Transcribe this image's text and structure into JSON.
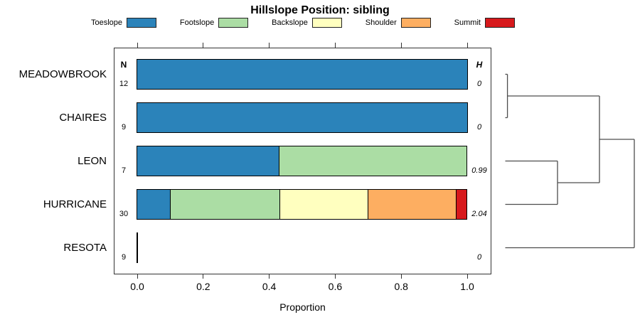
{
  "title": "Hillslope Position: sibling",
  "legend": {
    "items": [
      {
        "label": "Toeslope",
        "color": "#2B83BA"
      },
      {
        "label": "Footslope",
        "color": "#ABDDA4"
      },
      {
        "label": "Backslope",
        "color": "#FFFFBF"
      },
      {
        "label": "Shoulder",
        "color": "#FDAE61"
      },
      {
        "label": "Summit",
        "color": "#D7191C"
      }
    ]
  },
  "columns": {
    "n_header": "N",
    "h_header": "H"
  },
  "x_axis": {
    "label": "Proportion",
    "ticks": [
      "0.0",
      "0.2",
      "0.4",
      "0.6",
      "0.8",
      "1.0"
    ],
    "tick_values": [
      0,
      0.2,
      0.4,
      0.6,
      0.8,
      1.0
    ]
  },
  "chart_data": {
    "type": "bar",
    "stacked": true,
    "orientation": "horizontal",
    "title": "Hillslope Position: sibling",
    "xlabel": "Proportion",
    "xlim": [
      0,
      1
    ],
    "grid": false,
    "legend_position": "top",
    "categories": [
      "MEADOWBROOK",
      "CHAIRES",
      "LEON",
      "HURRICANE",
      "RESOTA"
    ],
    "sample_sizes": [
      12,
      9,
      7,
      30,
      9
    ],
    "shannon_entropy": [
      "0",
      "0",
      "0.99",
      "2.04",
      "0"
    ],
    "series": [
      {
        "name": "Toeslope",
        "color": "#2B83BA",
        "values": [
          1,
          1,
          0.429,
          0.1,
          0
        ]
      },
      {
        "name": "Footslope",
        "color": "#ABDDA4",
        "values": [
          0,
          0,
          0.571,
          0.333,
          0
        ]
      },
      {
        "name": "Backslope",
        "color": "#FFFFBF",
        "values": [
          0,
          0,
          0,
          0.267,
          0
        ]
      },
      {
        "name": "Shoulder",
        "color": "#FDAE61",
        "values": [
          0,
          0,
          0,
          0.267,
          0
        ]
      },
      {
        "name": "Summit",
        "color": "#D7191C",
        "values": [
          0,
          0,
          0,
          0.033,
          0
        ]
      }
    ],
    "dendrogram": {
      "leaf_order": [
        "MEADOWBROOK",
        "CHAIRES",
        "LEON",
        "HURRICANE",
        "RESOTA"
      ],
      "merges": [
        {
          "a": [
            "leaf",
            0
          ],
          "b": [
            "leaf",
            1
          ],
          "height": 0.017
        },
        {
          "a": [
            "leaf",
            2
          ],
          "b": [
            "leaf",
            3
          ],
          "height": 0.405
        },
        {
          "a": [
            "merge",
            0
          ],
          "b": [
            "merge",
            1
          ],
          "height": 0.73
        },
        {
          "a": [
            "merge",
            2
          ],
          "b": [
            "leaf",
            4
          ],
          "height": 1.0
        }
      ]
    }
  }
}
